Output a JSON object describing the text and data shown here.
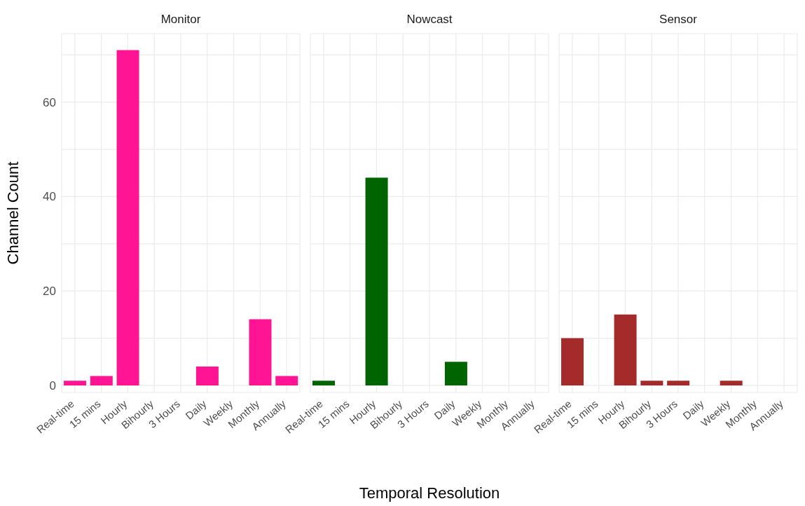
{
  "chart_data": [
    {
      "type": "bar",
      "title": "Monitor",
      "ylabel": "Channel Count",
      "categories": [
        "Real-time",
        "15 mins",
        "Hourly",
        "Bihourly",
        "3 Hours",
        "Daily",
        "Weekly",
        "Monthly",
        "Annually"
      ],
      "values": [
        1,
        2,
        71,
        0,
        0,
        4,
        0,
        14,
        2
      ],
      "color": "#ff1493",
      "ylim": [
        -1.5,
        74.5
      ],
      "yticks": [
        0,
        {
          "value": 10,
          "label": null
        },
        20,
        {
          "value": 30,
          "label": null
        },
        40,
        {
          "value": 50,
          "label": null
        },
        60,
        {
          "value": 70,
          "label": null
        }
      ],
      "grid": true
    },
    {
      "type": "bar",
      "title": "Nowcast",
      "xlabel": "Temporal Resolution",
      "categories": [
        "Real-time",
        "15 mins",
        "Hourly",
        "Bihourly",
        "3 Hours",
        "Daily",
        "Weekly",
        "Monthly",
        "Annually"
      ],
      "values": [
        1,
        0,
        44,
        0,
        0,
        5,
        0,
        0,
        0
      ],
      "color": "#006400",
      "ylim": [
        -1.5,
        74.5
      ],
      "yticks": [
        0,
        {
          "value": 10,
          "label": null
        },
        20,
        {
          "value": 30,
          "label": null
        },
        40,
        {
          "value": 50,
          "label": null
        },
        60,
        {
          "value": 70,
          "label": null
        }
      ],
      "grid": true,
      "tick_labels": "x"
    },
    {
      "type": "bar",
      "title": "Sensor",
      "categories": [
        "Real-time",
        "15 mins",
        "Hourly",
        "Bihourly",
        "3 Hours",
        "Daily",
        "Weekly",
        "Monthly",
        "Annually"
      ],
      "values": [
        10,
        0,
        15,
        1,
        1,
        0,
        1,
        0,
        0
      ],
      "color": "#a52a2a",
      "ylim": [
        -1.5,
        74.5
      ],
      "yticks": [
        0,
        {
          "value": 10,
          "label": null
        },
        20,
        {
          "value": 30,
          "label": null
        },
        40,
        {
          "value": 50,
          "label": null
        },
        60,
        {
          "value": 70,
          "label": null
        }
      ],
      "grid": true,
      "tick_labels": "x"
    }
  ]
}
